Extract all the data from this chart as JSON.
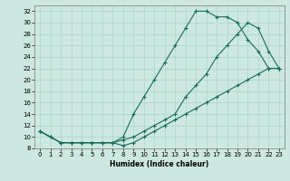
{
  "xlabel": "Humidex (Indice chaleur)",
  "x_ticks": [
    0,
    1,
    2,
    3,
    4,
    5,
    6,
    7,
    8,
    9,
    10,
    11,
    12,
    13,
    14,
    15,
    16,
    17,
    18,
    19,
    20,
    21,
    22,
    23
  ],
  "y_ticks": [
    8,
    10,
    12,
    14,
    16,
    18,
    20,
    22,
    24,
    26,
    28,
    30,
    32
  ],
  "ylim": [
    8,
    33
  ],
  "xlim": [
    -0.5,
    23.5
  ],
  "bg_color": "#cce8e0",
  "line_color": "#1a6b5a",
  "grid_color": "#b0d8cc",
  "line1_x": [
    0,
    1,
    2,
    3,
    4,
    5,
    6,
    7,
    8,
    9,
    10,
    11,
    12,
    13,
    14,
    15,
    16,
    17,
    18,
    19,
    20,
    21,
    22,
    23
  ],
  "line1_y": [
    11,
    10,
    9,
    9,
    9,
    9,
    9,
    9,
    10,
    14,
    17,
    20,
    23,
    26,
    29,
    32,
    32,
    31,
    31,
    30,
    27,
    25,
    22,
    22
  ],
  "line2_x": [
    0,
    1,
    2,
    3,
    4,
    5,
    6,
    7,
    8,
    9,
    10,
    11,
    12,
    13,
    14,
    15,
    16,
    17,
    18,
    19,
    20,
    21,
    22,
    23
  ],
  "line2_y": [
    11,
    10,
    9,
    9,
    9,
    9,
    9,
    9,
    9.5,
    10,
    11,
    12,
    13,
    14,
    17,
    19,
    21,
    24,
    26,
    28,
    30,
    29,
    25,
    22
  ],
  "line3_x": [
    0,
    2,
    3,
    4,
    5,
    6,
    7,
    8,
    9,
    10,
    11,
    12,
    13,
    14,
    15,
    16,
    17,
    18,
    19,
    20,
    21,
    22,
    23
  ],
  "line3_y": [
    11,
    9,
    9,
    9,
    9,
    9,
    9,
    8.5,
    9,
    10,
    11,
    12,
    13,
    14,
    15,
    16,
    17,
    18,
    19,
    20,
    21,
    22,
    22
  ]
}
